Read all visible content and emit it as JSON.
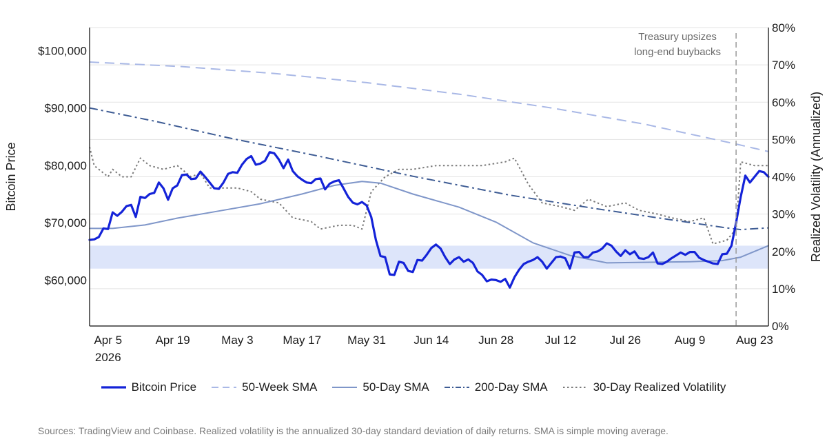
{
  "chart_data": {
    "type": "line",
    "title": "",
    "xlabel": "",
    "ylabel": "Bitcoin Price",
    "ylabel_right": "Realized Volatility (Annualized)",
    "x_start": "2026-04-01",
    "x_end": "2026-08-26",
    "ylim": [
      52000,
      104000
    ],
    "ylim_right": [
      0,
      80
    ],
    "x_ticks": [
      {
        "date": "2026-04-05",
        "label": "Apr 5",
        "sublabel": "2026"
      },
      {
        "date": "2026-04-19",
        "label": "Apr 19"
      },
      {
        "date": "2026-05-03",
        "label": "May 3"
      },
      {
        "date": "2026-05-17",
        "label": "May 17"
      },
      {
        "date": "2026-05-31",
        "label": "May 31"
      },
      {
        "date": "2026-06-14",
        "label": "Jun 14"
      },
      {
        "date": "2026-06-28",
        "label": "Jun 28"
      },
      {
        "date": "2026-07-12",
        "label": "Jul 12"
      },
      {
        "date": "2026-07-26",
        "label": "Jul 26"
      },
      {
        "date": "2026-08-09",
        "label": "Aug 9"
      },
      {
        "date": "2026-08-23",
        "label": "Aug 23"
      }
    ],
    "y_ticks": [
      {
        "value": 60000,
        "label": "$60,000"
      },
      {
        "value": 70000,
        "label": "$70,000"
      },
      {
        "value": 80000,
        "label": "$80,000"
      },
      {
        "value": 90000,
        "label": "$90,000"
      },
      {
        "value": 100000,
        "label": "$100,000"
      }
    ],
    "y_ticks_right": [
      {
        "value": 0,
        "label": "0%"
      },
      {
        "value": 10,
        "label": "10%"
      },
      {
        "value": 20,
        "label": "20%"
      },
      {
        "value": 30,
        "label": "30%"
      },
      {
        "value": 40,
        "label": "40%"
      },
      {
        "value": 50,
        "label": "50%"
      },
      {
        "value": 60,
        "label": "60%"
      },
      {
        "value": 70,
        "label": "70%"
      },
      {
        "value": 80,
        "label": "80%"
      }
    ],
    "grid": true,
    "legend_position": "bottom",
    "shaded_band": {
      "y_from": 62000,
      "y_to": 66000,
      "color": "#dde5fa"
    },
    "annotation": {
      "date": "2026-08-19",
      "lines": [
        "Treasury upsizes",
        "long-end buybacks"
      ]
    },
    "series": [
      {
        "name": "Bitcoin Price",
        "axis": "left",
        "style": "solid",
        "color": "#1423d8",
        "width": 3.2,
        "points": [
          [
            "2026-04-01",
            67000
          ],
          [
            "2026-04-02",
            67100
          ],
          [
            "2026-04-03",
            67500
          ],
          [
            "2026-04-04",
            69000
          ],
          [
            "2026-04-05",
            68900
          ],
          [
            "2026-04-06",
            71800
          ],
          [
            "2026-04-07",
            71200
          ],
          [
            "2026-04-08",
            71900
          ],
          [
            "2026-04-09",
            72900
          ],
          [
            "2026-04-10",
            73100
          ],
          [
            "2026-04-11",
            71000
          ],
          [
            "2026-04-12",
            74500
          ],
          [
            "2026-04-13",
            74300
          ],
          [
            "2026-04-14",
            75000
          ],
          [
            "2026-04-15",
            75200
          ],
          [
            "2026-04-16",
            77000
          ],
          [
            "2026-04-17",
            76000
          ],
          [
            "2026-04-18",
            74000
          ],
          [
            "2026-04-19",
            76000
          ],
          [
            "2026-04-20",
            76500
          ],
          [
            "2026-04-21",
            78300
          ],
          [
            "2026-04-22",
            78400
          ],
          [
            "2026-04-23",
            77600
          ],
          [
            "2026-04-24",
            77700
          ],
          [
            "2026-04-25",
            78900
          ],
          [
            "2026-04-26",
            78000
          ],
          [
            "2026-04-27",
            77000
          ],
          [
            "2026-04-28",
            76000
          ],
          [
            "2026-04-29",
            75900
          ],
          [
            "2026-04-30",
            77000
          ],
          [
            "2026-05-01",
            78500
          ],
          [
            "2026-05-02",
            78800
          ],
          [
            "2026-05-03",
            78700
          ],
          [
            "2026-05-04",
            80100
          ],
          [
            "2026-05-05",
            81100
          ],
          [
            "2026-05-06",
            81600
          ],
          [
            "2026-05-07",
            80100
          ],
          [
            "2026-05-08",
            80300
          ],
          [
            "2026-05-09",
            80800
          ],
          [
            "2026-05-10",
            82300
          ],
          [
            "2026-05-11",
            82100
          ],
          [
            "2026-05-12",
            81000
          ],
          [
            "2026-05-13",
            79500
          ],
          [
            "2026-05-14",
            81000
          ],
          [
            "2026-05-15",
            79000
          ],
          [
            "2026-05-16",
            78100
          ],
          [
            "2026-05-17",
            77500
          ],
          [
            "2026-05-18",
            77000
          ],
          [
            "2026-05-19",
            76900
          ],
          [
            "2026-05-20",
            77600
          ],
          [
            "2026-05-21",
            77700
          ],
          [
            "2026-05-22",
            75800
          ],
          [
            "2026-05-23",
            76800
          ],
          [
            "2026-05-24",
            77200
          ],
          [
            "2026-05-25",
            77400
          ],
          [
            "2026-05-26",
            76000
          ],
          [
            "2026-05-27",
            74500
          ],
          [
            "2026-05-28",
            73500
          ],
          [
            "2026-05-29",
            73200
          ],
          [
            "2026-05-30",
            73600
          ],
          [
            "2026-05-31",
            73000
          ],
          [
            "2026-06-01",
            71000
          ],
          [
            "2026-06-02",
            67000
          ],
          [
            "2026-06-03",
            64200
          ],
          [
            "2026-06-04",
            64000
          ],
          [
            "2026-06-05",
            61000
          ],
          [
            "2026-06-06",
            60900
          ],
          [
            "2026-06-07",
            63200
          ],
          [
            "2026-06-08",
            63000
          ],
          [
            "2026-06-09",
            61600
          ],
          [
            "2026-06-10",
            61400
          ],
          [
            "2026-06-11",
            63500
          ],
          [
            "2026-06-12",
            63400
          ],
          [
            "2026-06-13",
            64400
          ],
          [
            "2026-06-14",
            65600
          ],
          [
            "2026-06-15",
            66200
          ],
          [
            "2026-06-16",
            65500
          ],
          [
            "2026-06-17",
            64000
          ],
          [
            "2026-06-18",
            62800
          ],
          [
            "2026-06-19",
            63600
          ],
          [
            "2026-06-20",
            64000
          ],
          [
            "2026-06-21",
            63200
          ],
          [
            "2026-06-22",
            63600
          ],
          [
            "2026-06-23",
            63000
          ],
          [
            "2026-06-24",
            61500
          ],
          [
            "2026-06-25",
            60900
          ],
          [
            "2026-06-26",
            59800
          ],
          [
            "2026-06-27",
            60100
          ],
          [
            "2026-06-28",
            60000
          ],
          [
            "2026-06-29",
            59700
          ],
          [
            "2026-06-30",
            60200
          ],
          [
            "2026-07-01",
            58700
          ],
          [
            "2026-07-02",
            60500
          ],
          [
            "2026-07-03",
            61800
          ],
          [
            "2026-07-04",
            62800
          ],
          [
            "2026-07-05",
            63200
          ],
          [
            "2026-07-06",
            63500
          ],
          [
            "2026-07-07",
            64000
          ],
          [
            "2026-07-08",
            63200
          ],
          [
            "2026-07-09",
            62000
          ],
          [
            "2026-07-10",
            63000
          ],
          [
            "2026-07-11",
            64000
          ],
          [
            "2026-07-12",
            64100
          ],
          [
            "2026-07-13",
            63800
          ],
          [
            "2026-07-14",
            62000
          ],
          [
            "2026-07-15",
            64800
          ],
          [
            "2026-07-16",
            64900
          ],
          [
            "2026-07-17",
            64000
          ],
          [
            "2026-07-18",
            64000
          ],
          [
            "2026-07-19",
            64800
          ],
          [
            "2026-07-20",
            65000
          ],
          [
            "2026-07-21",
            65500
          ],
          [
            "2026-07-22",
            66400
          ],
          [
            "2026-07-23",
            66000
          ],
          [
            "2026-07-24",
            65000
          ],
          [
            "2026-07-25",
            64200
          ],
          [
            "2026-07-26",
            65200
          ],
          [
            "2026-07-27",
            64500
          ],
          [
            "2026-07-28",
            65000
          ],
          [
            "2026-07-29",
            63800
          ],
          [
            "2026-07-30",
            63700
          ],
          [
            "2026-07-31",
            64000
          ],
          [
            "2026-08-01",
            64800
          ],
          [
            "2026-08-02",
            62900
          ],
          [
            "2026-08-03",
            62800
          ],
          [
            "2026-08-04",
            63200
          ],
          [
            "2026-08-05",
            63800
          ],
          [
            "2026-08-06",
            64300
          ],
          [
            "2026-08-07",
            64800
          ],
          [
            "2026-08-08",
            64400
          ],
          [
            "2026-08-09",
            64900
          ],
          [
            "2026-08-10",
            64900
          ],
          [
            "2026-08-11",
            63900
          ],
          [
            "2026-08-12",
            63500
          ],
          [
            "2026-08-13",
            63200
          ],
          [
            "2026-08-14",
            62900
          ],
          [
            "2026-08-15",
            62800
          ],
          [
            "2026-08-16",
            64500
          ],
          [
            "2026-08-17",
            64600
          ],
          [
            "2026-08-18",
            66000
          ],
          [
            "2026-08-19",
            70000
          ],
          [
            "2026-08-20",
            74500
          ],
          [
            "2026-08-21",
            78200
          ],
          [
            "2026-08-22",
            77000
          ],
          [
            "2026-08-23",
            78000
          ],
          [
            "2026-08-24",
            79000
          ],
          [
            "2026-08-25",
            78800
          ],
          [
            "2026-08-26",
            78000
          ]
        ]
      },
      {
        "name": "50-Week SMA",
        "axis": "left",
        "style": "dashed",
        "color": "#a9b8e6",
        "width": 2,
        "points": [
          [
            "2026-04-01",
            98000
          ],
          [
            "2026-04-21",
            97200
          ],
          [
            "2026-05-11",
            96000
          ],
          [
            "2026-05-31",
            94400
          ],
          [
            "2026-06-20",
            92400
          ],
          [
            "2026-07-10",
            90000
          ],
          [
            "2026-07-30",
            87200
          ],
          [
            "2026-08-19",
            83700
          ],
          [
            "2026-08-26",
            82400
          ]
        ]
      },
      {
        "name": "50-Day SMA",
        "axis": "left",
        "style": "solid",
        "color": "#7f96c9",
        "width": 2,
        "points": [
          [
            "2026-04-01",
            69000
          ],
          [
            "2026-04-06",
            69000
          ],
          [
            "2026-04-13",
            69600
          ],
          [
            "2026-04-20",
            70800
          ],
          [
            "2026-04-28",
            71900
          ],
          [
            "2026-05-08",
            73300
          ],
          [
            "2026-05-17",
            75000
          ],
          [
            "2026-05-24",
            76500
          ],
          [
            "2026-05-30",
            77200
          ],
          [
            "2026-06-03",
            76900
          ],
          [
            "2026-06-10",
            75000
          ],
          [
            "2026-06-20",
            72700
          ],
          [
            "2026-06-28",
            70100
          ],
          [
            "2026-07-06",
            66500
          ],
          [
            "2026-07-14",
            64300
          ],
          [
            "2026-07-22",
            63000
          ],
          [
            "2026-07-30",
            63100
          ],
          [
            "2026-08-09",
            63200
          ],
          [
            "2026-08-16",
            63400
          ],
          [
            "2026-08-20",
            64000
          ],
          [
            "2026-08-26",
            66000
          ]
        ]
      },
      {
        "name": "200-Day SMA",
        "axis": "left",
        "style": "dashdot",
        "color": "#3e5c94",
        "width": 2,
        "points": [
          [
            "2026-04-01",
            90000
          ],
          [
            "2026-04-15",
            87700
          ],
          [
            "2026-05-01",
            84800
          ],
          [
            "2026-05-20",
            81700
          ],
          [
            "2026-06-10",
            78100
          ],
          [
            "2026-07-01",
            74800
          ],
          [
            "2026-07-20",
            72400
          ],
          [
            "2026-08-05",
            70500
          ],
          [
            "2026-08-16",
            69200
          ],
          [
            "2026-08-20",
            68800
          ],
          [
            "2026-08-26",
            69100
          ]
        ]
      },
      {
        "name": "30-Day Realized Volatility",
        "axis": "right",
        "style": "dotted",
        "color": "#7a7a7a",
        "width": 2,
        "points": [
          [
            "2026-04-01",
            48
          ],
          [
            "2026-04-02",
            43
          ],
          [
            "2026-04-03",
            42
          ],
          [
            "2026-04-05",
            40
          ],
          [
            "2026-04-06",
            42
          ],
          [
            "2026-04-08",
            40
          ],
          [
            "2026-04-10",
            40
          ],
          [
            "2026-04-12",
            45
          ],
          [
            "2026-04-14",
            43
          ],
          [
            "2026-04-17",
            42
          ],
          [
            "2026-04-20",
            43
          ],
          [
            "2026-04-23",
            40
          ],
          [
            "2026-04-25",
            41
          ],
          [
            "2026-04-27",
            37
          ],
          [
            "2026-04-30",
            37
          ],
          [
            "2026-05-03",
            37
          ],
          [
            "2026-05-06",
            36
          ],
          [
            "2026-05-08",
            34
          ],
          [
            "2026-05-12",
            33
          ],
          [
            "2026-05-15",
            29
          ],
          [
            "2026-05-19",
            28
          ],
          [
            "2026-05-21",
            26
          ],
          [
            "2026-05-25",
            27
          ],
          [
            "2026-05-28",
            27
          ],
          [
            "2026-05-30",
            26
          ],
          [
            "2026-06-01",
            36
          ],
          [
            "2026-06-04",
            40
          ],
          [
            "2026-06-07",
            42
          ],
          [
            "2026-06-10",
            42
          ],
          [
            "2026-06-15",
            43
          ],
          [
            "2026-06-20",
            43
          ],
          [
            "2026-06-25",
            43
          ],
          [
            "2026-06-30",
            44
          ],
          [
            "2026-07-02",
            45
          ],
          [
            "2026-07-05",
            38
          ],
          [
            "2026-07-08",
            33
          ],
          [
            "2026-07-12",
            32
          ],
          [
            "2026-07-15",
            31
          ],
          [
            "2026-07-18",
            34
          ],
          [
            "2026-07-22",
            32
          ],
          [
            "2026-07-26",
            33
          ],
          [
            "2026-07-29",
            31
          ],
          [
            "2026-08-02",
            30
          ],
          [
            "2026-08-05",
            29
          ],
          [
            "2026-08-09",
            28
          ],
          [
            "2026-08-12",
            29
          ],
          [
            "2026-08-14",
            22
          ],
          [
            "2026-08-17",
            23
          ],
          [
            "2026-08-19",
            26
          ],
          [
            "2026-08-20",
            44
          ],
          [
            "2026-08-23",
            43
          ],
          [
            "2026-08-26",
            43
          ]
        ]
      }
    ]
  },
  "footer": {
    "source": "Sources: TradingView and Coinbase. Realized volatility is the annualized 30-day standard deviation of daily returns. SMA is simple moving average."
  }
}
